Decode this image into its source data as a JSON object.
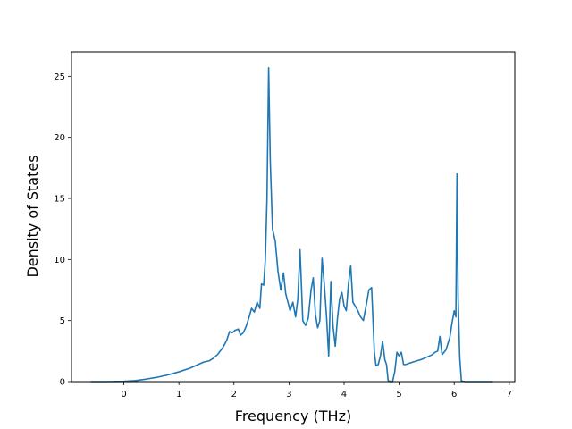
{
  "chart_data": {
    "type": "line",
    "title": "",
    "xlabel": "Frequency (THz)",
    "ylabel": "Density of States",
    "xlim": [
      -0.95,
      7.1
    ],
    "ylim": [
      0,
      27
    ],
    "xticks": [
      0,
      1,
      2,
      3,
      4,
      5,
      6,
      7
    ],
    "yticks": [
      0,
      5,
      10,
      15,
      20,
      25
    ],
    "grid": false,
    "legend": "none",
    "series": [
      {
        "color": "#1f77b4",
        "x": [
          -0.6,
          -0.3,
          0.0,
          0.2,
          0.4,
          0.6,
          0.8,
          1.0,
          1.2,
          1.35,
          1.45,
          1.55,
          1.62,
          1.7,
          1.8,
          1.87,
          1.92,
          1.97,
          2.02,
          2.08,
          2.12,
          2.17,
          2.22,
          2.27,
          2.32,
          2.37,
          2.42,
          2.47,
          2.5,
          2.54,
          2.57,
          2.6,
          2.63,
          2.66,
          2.7,
          2.75,
          2.8,
          2.85,
          2.9,
          2.94,
          2.98,
          3.02,
          3.07,
          3.12,
          3.16,
          3.2,
          3.25,
          3.3,
          3.35,
          3.4,
          3.44,
          3.48,
          3.52,
          3.56,
          3.6,
          3.64,
          3.68,
          3.72,
          3.76,
          3.8,
          3.84,
          3.88,
          3.92,
          3.96,
          4.0,
          4.04,
          4.08,
          4.12,
          4.16,
          4.2,
          4.25,
          4.3,
          4.35,
          4.4,
          4.45,
          4.5,
          4.55,
          4.58,
          4.62,
          4.66,
          4.7,
          4.74,
          4.77,
          4.8,
          4.84,
          4.88,
          4.92,
          4.96,
          5.0,
          5.04,
          5.08,
          5.12,
          5.18,
          5.25,
          5.32,
          5.4,
          5.5,
          5.6,
          5.65,
          5.7,
          5.74,
          5.78,
          5.85,
          5.92,
          5.96,
          6.0,
          6.03,
          6.05,
          6.07,
          6.1,
          6.13,
          6.2,
          6.4,
          6.7
        ],
        "y": [
          0,
          0,
          0.02,
          0.08,
          0.2,
          0.35,
          0.55,
          0.8,
          1.1,
          1.4,
          1.6,
          1.7,
          1.9,
          2.2,
          2.8,
          3.4,
          4.1,
          4.0,
          4.2,
          4.3,
          3.8,
          4.0,
          4.5,
          5.2,
          6.0,
          5.7,
          6.5,
          6.0,
          8.0,
          7.9,
          10.0,
          15.0,
          25.7,
          18.0,
          12.5,
          11.5,
          9.0,
          7.5,
          8.9,
          7.2,
          6.5,
          5.8,
          6.5,
          5.3,
          6.8,
          10.8,
          5.0,
          4.6,
          5.2,
          7.5,
          8.5,
          5.5,
          4.4,
          5.0,
          10.1,
          8.0,
          5.4,
          2.1,
          8.2,
          4.5,
          2.9,
          5.2,
          6.8,
          7.3,
          6.2,
          5.8,
          8.0,
          9.5,
          6.5,
          6.2,
          5.8,
          5.3,
          5.0,
          6.2,
          7.5,
          7.7,
          2.4,
          1.3,
          1.4,
          2.1,
          3.3,
          1.8,
          1.4,
          0.1,
          0,
          0,
          0.8,
          2.4,
          2.1,
          2.4,
          1.4,
          1.4,
          1.5,
          1.6,
          1.7,
          1.8,
          2.0,
          2.2,
          2.4,
          2.5,
          3.7,
          2.2,
          2.6,
          3.6,
          4.8,
          5.8,
          5.3,
          17.0,
          7.0,
          2.0,
          0.05,
          0,
          0,
          0
        ]
      }
    ]
  }
}
